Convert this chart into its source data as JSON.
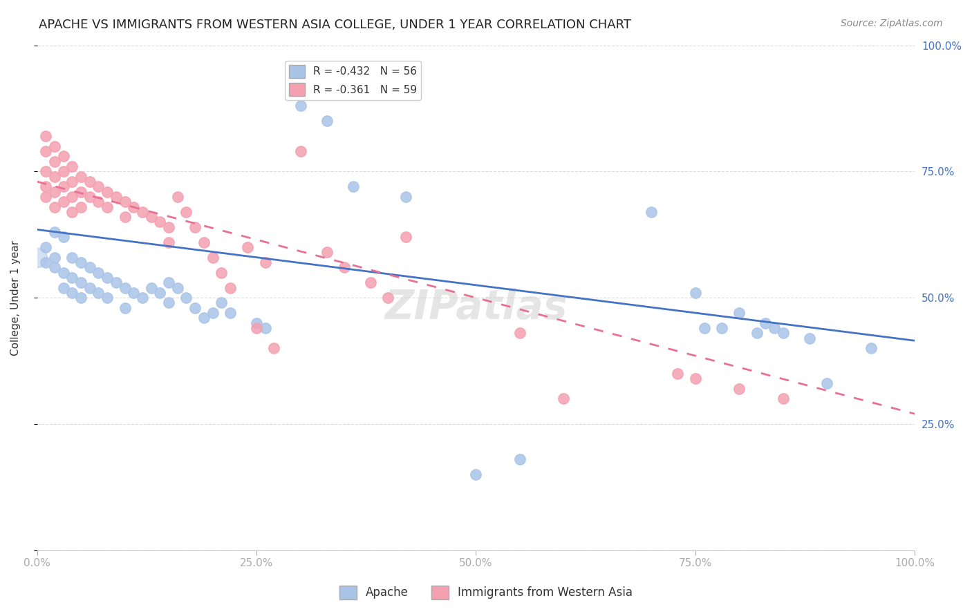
{
  "title": "APACHE VS IMMIGRANTS FROM WESTERN ASIA COLLEGE, UNDER 1 YEAR CORRELATION CHART",
  "source": "Source: ZipAtlas.com",
  "ylabel": "College, Under 1 year",
  "xlabel_ticks": [
    "0.0%",
    "25.0%",
    "50.0%",
    "75.0%",
    "100.0%"
  ],
  "ylabel_ticks": [
    "0.0%",
    "25.0%",
    "50.0%",
    "75.0%",
    "100.0%"
  ],
  "legend_entries": [
    {
      "label": "R = -0.432   N = 56",
      "color": "#aac4e8"
    },
    {
      "label": "R = -0.361   N = 59",
      "color": "#f4a0b0"
    }
  ],
  "legend_bottom": [
    "Apache",
    "Immigrants from Western Asia"
  ],
  "apache_R": -0.432,
  "apache_N": 56,
  "immigrants_R": -0.361,
  "immigrants_N": 59,
  "apache_color": "#aac4e8",
  "apache_line_color": "#4472c4",
  "immigrants_color": "#f4a0b0",
  "immigrants_line_color": "#e87090",
  "background_color": "#ffffff",
  "grid_color": "#cccccc",
  "right_tick_color": "#4472c4",
  "watermark": "ZIPatlas",
  "apache_points": [
    [
      0.01,
      0.6
    ],
    [
      0.01,
      0.57
    ],
    [
      0.02,
      0.63
    ],
    [
      0.02,
      0.58
    ],
    [
      0.02,
      0.56
    ],
    [
      0.03,
      0.62
    ],
    [
      0.03,
      0.55
    ],
    [
      0.03,
      0.52
    ],
    [
      0.04,
      0.58
    ],
    [
      0.04,
      0.54
    ],
    [
      0.04,
      0.51
    ],
    [
      0.05,
      0.57
    ],
    [
      0.05,
      0.53
    ],
    [
      0.05,
      0.5
    ],
    [
      0.06,
      0.56
    ],
    [
      0.06,
      0.52
    ],
    [
      0.07,
      0.55
    ],
    [
      0.07,
      0.51
    ],
    [
      0.08,
      0.54
    ],
    [
      0.08,
      0.5
    ],
    [
      0.09,
      0.53
    ],
    [
      0.1,
      0.52
    ],
    [
      0.1,
      0.48
    ],
    [
      0.11,
      0.51
    ],
    [
      0.12,
      0.5
    ],
    [
      0.13,
      0.52
    ],
    [
      0.14,
      0.51
    ],
    [
      0.15,
      0.53
    ],
    [
      0.15,
      0.49
    ],
    [
      0.16,
      0.52
    ],
    [
      0.17,
      0.5
    ],
    [
      0.18,
      0.48
    ],
    [
      0.19,
      0.46
    ],
    [
      0.2,
      0.47
    ],
    [
      0.21,
      0.49
    ],
    [
      0.22,
      0.47
    ],
    [
      0.25,
      0.45
    ],
    [
      0.26,
      0.44
    ],
    [
      0.3,
      0.88
    ],
    [
      0.33,
      0.85
    ],
    [
      0.36,
      0.72
    ],
    [
      0.42,
      0.7
    ],
    [
      0.5,
      0.15
    ],
    [
      0.55,
      0.18
    ],
    [
      0.7,
      0.67
    ],
    [
      0.75,
      0.51
    ],
    [
      0.76,
      0.44
    ],
    [
      0.78,
      0.44
    ],
    [
      0.8,
      0.47
    ],
    [
      0.82,
      0.43
    ],
    [
      0.83,
      0.45
    ],
    [
      0.84,
      0.44
    ],
    [
      0.85,
      0.43
    ],
    [
      0.88,
      0.42
    ],
    [
      0.9,
      0.33
    ],
    [
      0.95,
      0.4
    ]
  ],
  "immigrants_points": [
    [
      0.01,
      0.82
    ],
    [
      0.01,
      0.79
    ],
    [
      0.01,
      0.75
    ],
    [
      0.01,
      0.72
    ],
    [
      0.01,
      0.7
    ],
    [
      0.02,
      0.8
    ],
    [
      0.02,
      0.77
    ],
    [
      0.02,
      0.74
    ],
    [
      0.02,
      0.71
    ],
    [
      0.02,
      0.68
    ],
    [
      0.03,
      0.78
    ],
    [
      0.03,
      0.75
    ],
    [
      0.03,
      0.72
    ],
    [
      0.03,
      0.69
    ],
    [
      0.04,
      0.76
    ],
    [
      0.04,
      0.73
    ],
    [
      0.04,
      0.7
    ],
    [
      0.04,
      0.67
    ],
    [
      0.05,
      0.74
    ],
    [
      0.05,
      0.71
    ],
    [
      0.05,
      0.68
    ],
    [
      0.06,
      0.73
    ],
    [
      0.06,
      0.7
    ],
    [
      0.07,
      0.72
    ],
    [
      0.07,
      0.69
    ],
    [
      0.08,
      0.71
    ],
    [
      0.08,
      0.68
    ],
    [
      0.09,
      0.7
    ],
    [
      0.1,
      0.69
    ],
    [
      0.1,
      0.66
    ],
    [
      0.11,
      0.68
    ],
    [
      0.12,
      0.67
    ],
    [
      0.13,
      0.66
    ],
    [
      0.14,
      0.65
    ],
    [
      0.15,
      0.64
    ],
    [
      0.15,
      0.61
    ],
    [
      0.16,
      0.7
    ],
    [
      0.17,
      0.67
    ],
    [
      0.18,
      0.64
    ],
    [
      0.19,
      0.61
    ],
    [
      0.2,
      0.58
    ],
    [
      0.21,
      0.55
    ],
    [
      0.22,
      0.52
    ],
    [
      0.24,
      0.6
    ],
    [
      0.25,
      0.44
    ],
    [
      0.26,
      0.57
    ],
    [
      0.27,
      0.4
    ],
    [
      0.3,
      0.79
    ],
    [
      0.33,
      0.59
    ],
    [
      0.35,
      0.56
    ],
    [
      0.38,
      0.53
    ],
    [
      0.4,
      0.5
    ],
    [
      0.42,
      0.62
    ],
    [
      0.55,
      0.43
    ],
    [
      0.6,
      0.3
    ],
    [
      0.73,
      0.35
    ],
    [
      0.75,
      0.34
    ],
    [
      0.8,
      0.32
    ],
    [
      0.85,
      0.3
    ]
  ],
  "apache_large_point": [
    0.0,
    0.58
  ],
  "apache_large_size": 400
}
